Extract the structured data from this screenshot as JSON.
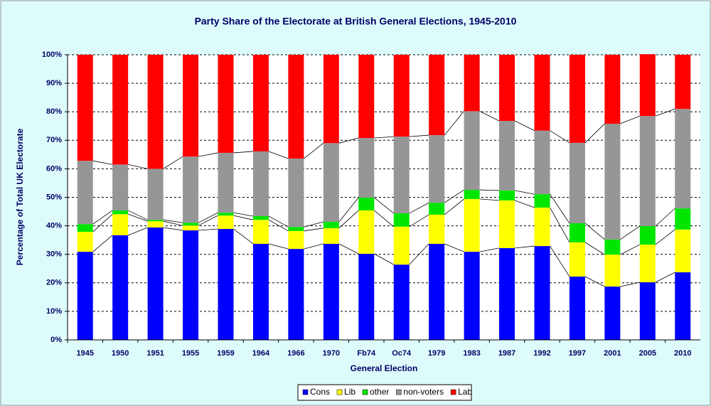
{
  "chart_data": {
    "type": "stacked-bar",
    "title": "Party Share of the Electorate at British General Elections, 1945-2010",
    "x_label": "General Election",
    "y_label": "Percentage of Total UK Electorate",
    "categories": [
      "1945",
      "1950",
      "1951",
      "1955",
      "1959",
      "1964",
      "1966",
      "1970",
      "Fb74",
      "Oc74",
      "1979",
      "1983",
      "1987",
      "1992",
      "1997",
      "2001",
      "2005",
      "2010"
    ],
    "series": [
      {
        "name": "Cons",
        "color": "#0000ff",
        "values": [
          30.9,
          36.7,
          39.4,
          38.4,
          38.9,
          33.7,
          31.9,
          33.7,
          30.2,
          26.4,
          33.7,
          30.9,
          32.2,
          32.9,
          22.2,
          18.7,
          20.2,
          23.7
        ]
      },
      {
        "name": "Lib",
        "color": "#ffff00",
        "values": [
          7.0,
          7.4,
          2.2,
          1.7,
          4.7,
          8.4,
          6.3,
          5.5,
          15.2,
          13.3,
          10.2,
          18.5,
          16.7,
          13.5,
          12.0,
          11.2,
          13.2,
          15.0
        ]
      },
      {
        "name": "other",
        "color": "#00e600",
        "values": [
          2.7,
          1.3,
          0.5,
          1.0,
          1.0,
          1.3,
          1.4,
          2.2,
          4.5,
          4.7,
          4.2,
          3.2,
          3.5,
          4.7,
          6.7,
          5.3,
          6.5,
          7.4
        ]
      },
      {
        "name": "non-voters",
        "color": "#969696",
        "values": [
          22.2,
          16.1,
          17.9,
          23.2,
          21.0,
          22.7,
          24.0,
          27.6,
          20.9,
          26.9,
          23.7,
          27.6,
          24.4,
          22.3,
          28.2,
          40.6,
          38.6,
          34.9
        ]
      },
      {
        "name": "Lab",
        "color": "#ff0000",
        "values": [
          37.2,
          38.5,
          40.0,
          35.7,
          34.4,
          33.9,
          36.4,
          31.0,
          29.2,
          28.7,
          28.2,
          19.8,
          23.2,
          26.6,
          30.9,
          24.2,
          21.7,
          19.0
        ]
      }
    ],
    "ylim": [
      0,
      100
    ],
    "yticks": [
      {
        "value": 0,
        "label": "0%"
      },
      {
        "value": 10,
        "label": "10%"
      },
      {
        "value": 20,
        "label": "20%"
      },
      {
        "value": 30,
        "label": "30%"
      },
      {
        "value": 40,
        "label": "40%"
      },
      {
        "value": 50,
        "label": "50%"
      },
      {
        "value": 60,
        "label": "60%"
      },
      {
        "value": 70,
        "label": "70%"
      },
      {
        "value": 80,
        "label": "80%"
      },
      {
        "value": 90,
        "label": "90%"
      },
      {
        "value": 100,
        "label": "100%"
      }
    ],
    "grid": true,
    "legend": "bottom"
  }
}
